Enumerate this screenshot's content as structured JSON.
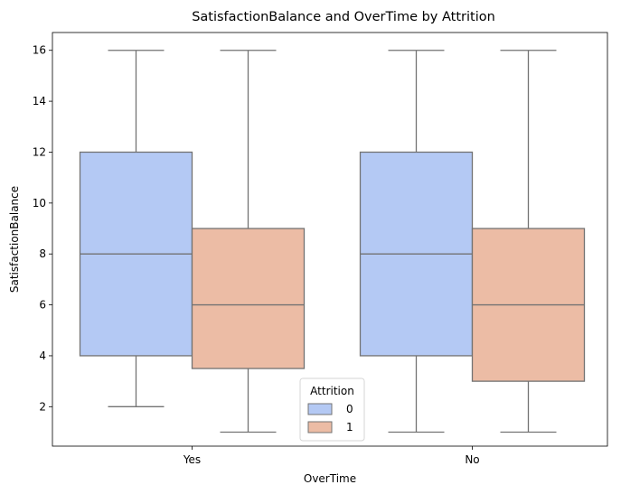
{
  "chart_data": {
    "type": "box",
    "title": "SatisfactionBalance and OverTime by Attrition",
    "xlabel": "OverTime",
    "ylabel": "SatisfactionBalance",
    "categories": [
      "Yes",
      "No"
    ],
    "ylim": [
      0.45,
      16.7
    ],
    "yticks": [
      2,
      4,
      6,
      8,
      10,
      12,
      14,
      16
    ],
    "grid": false,
    "legend": {
      "title": "Attrition",
      "placement": "lower-center"
    },
    "series": [
      {
        "name": "0",
        "color": "#b4c9f4",
        "boxes": [
          {
            "category": "Yes",
            "min": 2,
            "q1": 4,
            "median": 8,
            "q3": 12,
            "max": 16
          },
          {
            "category": "No",
            "min": 1,
            "q1": 4,
            "median": 8,
            "q3": 12,
            "max": 16
          }
        ]
      },
      {
        "name": "1",
        "color": "#ecbca5",
        "boxes": [
          {
            "category": "Yes",
            "min": 1,
            "q1": 3.5,
            "median": 6,
            "q3": 9,
            "max": 16
          },
          {
            "category": "No",
            "min": 1,
            "q1": 3,
            "median": 6,
            "q3": 9,
            "max": 16
          }
        ]
      }
    ],
    "line_color": "#737373"
  }
}
